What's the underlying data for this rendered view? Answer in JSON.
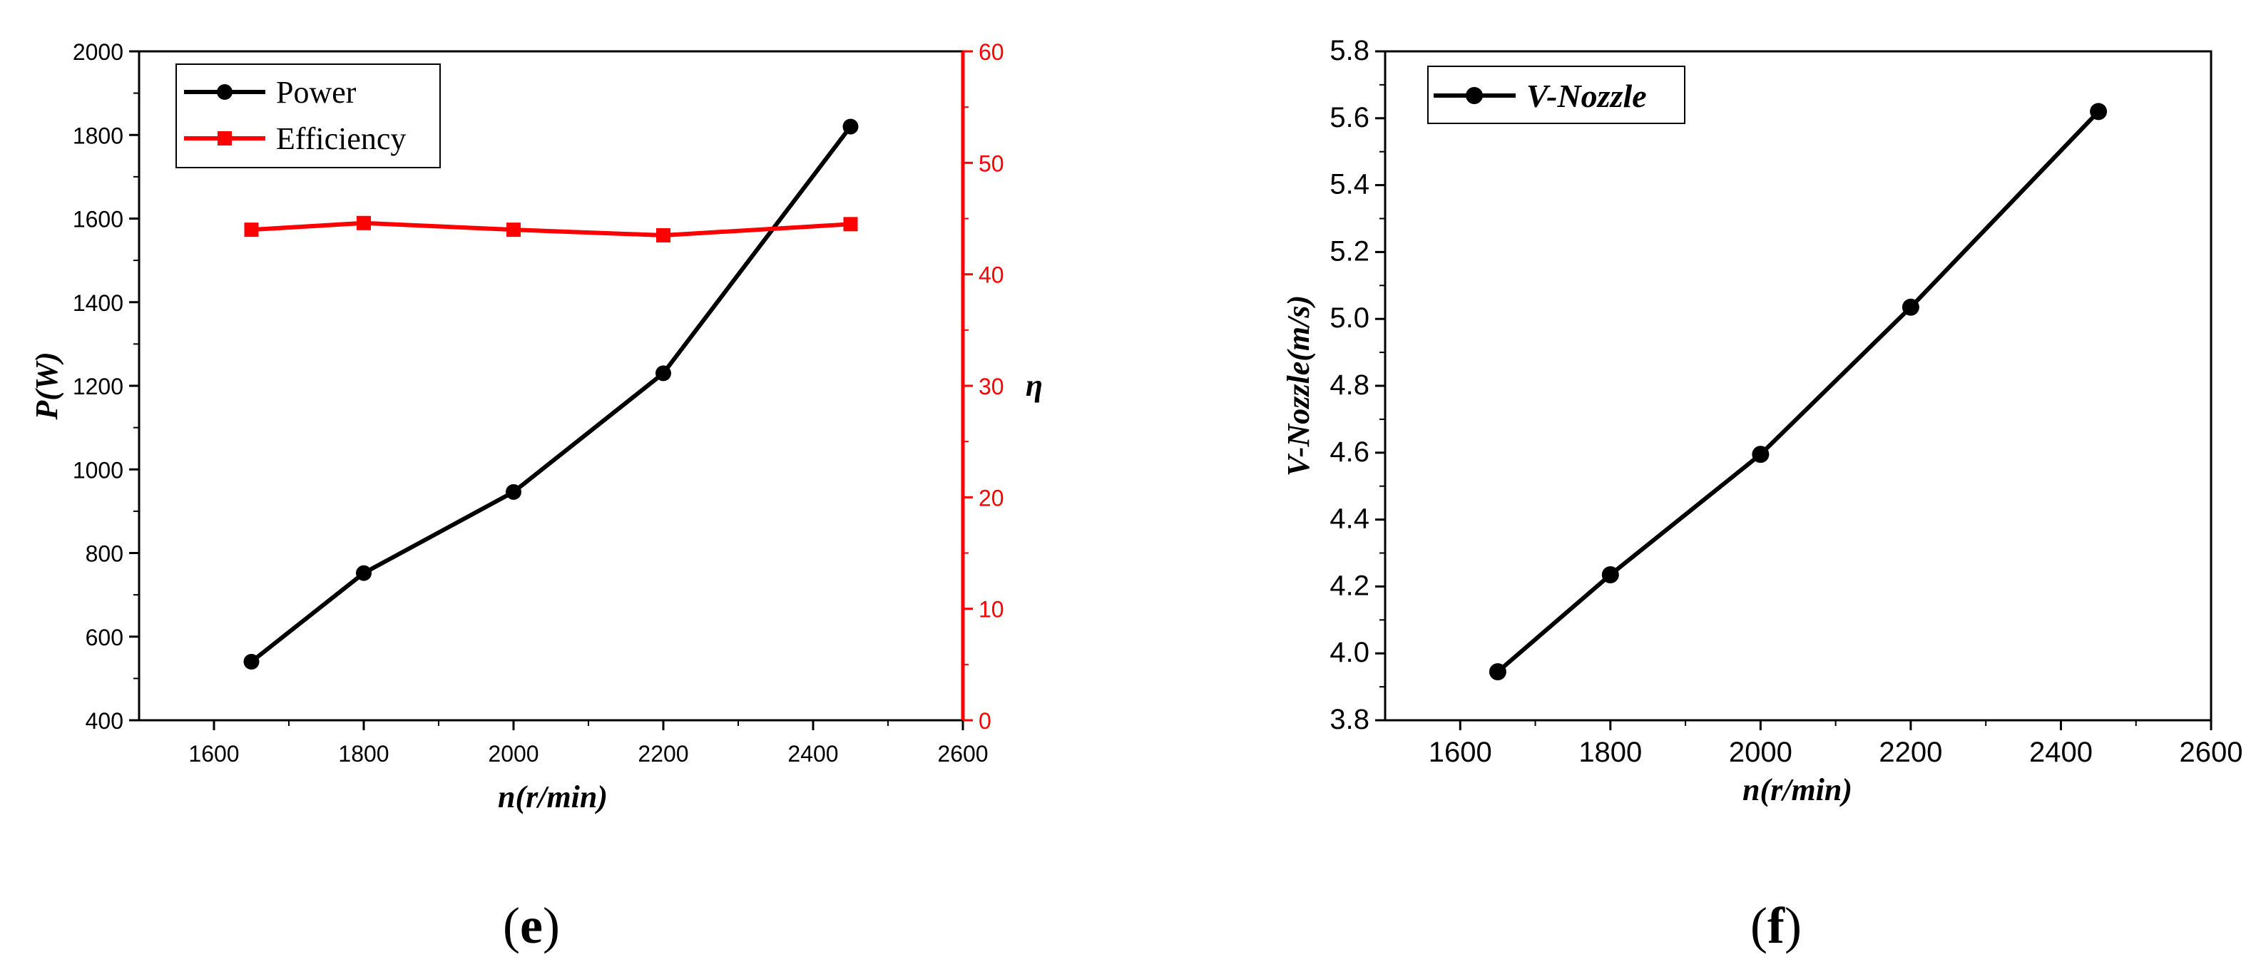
{
  "chart_data": [
    {
      "type": "line",
      "panel_label": {
        "open": "(",
        "letter": "e",
        "close": ")"
      },
      "xlabel": "n(r/min)",
      "ylabel": "P(W)",
      "y2label": "η",
      "xlim": [
        1500,
        2600
      ],
      "ylim": [
        400,
        2000
      ],
      "y2lim": [
        0,
        60
      ],
      "x_ticks": [
        "1600",
        "1800",
        "2000",
        "2200",
        "2400",
        "2600"
      ],
      "y_ticks": [
        "400",
        "600",
        "800",
        "1000",
        "1200",
        "1400",
        "1600",
        "1800",
        "2000"
      ],
      "y2_ticks": [
        "0",
        "10",
        "20",
        "30",
        "40",
        "50",
        "60"
      ],
      "legend_position": "top-left",
      "series": [
        {
          "name": "Power",
          "axis": "left",
          "color": "#000000",
          "marker": "circle",
          "x": [
            1650,
            1800,
            2000,
            2200,
            2450
          ],
          "values": [
            540,
            752,
            946,
            1230,
            1820
          ]
        },
        {
          "name": "Efficiency",
          "axis": "right",
          "color": "#ff0000",
          "marker": "square",
          "x": [
            1650,
            1800,
            2000,
            2200,
            2450
          ],
          "values": [
            44.0,
            44.6,
            44.0,
            43.5,
            44.5
          ]
        }
      ]
    },
    {
      "type": "line",
      "panel_label": {
        "open": "(",
        "letter": "f",
        "close": ")"
      },
      "xlabel": "n(r/min)",
      "ylabel": "V-Nozzle(m/s)",
      "xlim": [
        1500,
        2600
      ],
      "ylim": [
        3.8,
        5.8
      ],
      "x_ticks": [
        "1600",
        "1800",
        "2000",
        "2200",
        "2400",
        "2600"
      ],
      "y_ticks": [
        "3.8",
        "4.0",
        "4.2",
        "4.4",
        "4.6",
        "4.8",
        "5.0",
        "5.2",
        "5.4",
        "5.6",
        "5.8"
      ],
      "legend_position": "top-left",
      "series": [
        {
          "name": "V-Nozzle",
          "axis": "left",
          "color": "#000000",
          "marker": "circle",
          "x": [
            1650,
            1800,
            2000,
            2200,
            2450
          ],
          "values": [
            3.945,
            4.235,
            4.595,
            5.035,
            5.62
          ]
        }
      ]
    }
  ]
}
